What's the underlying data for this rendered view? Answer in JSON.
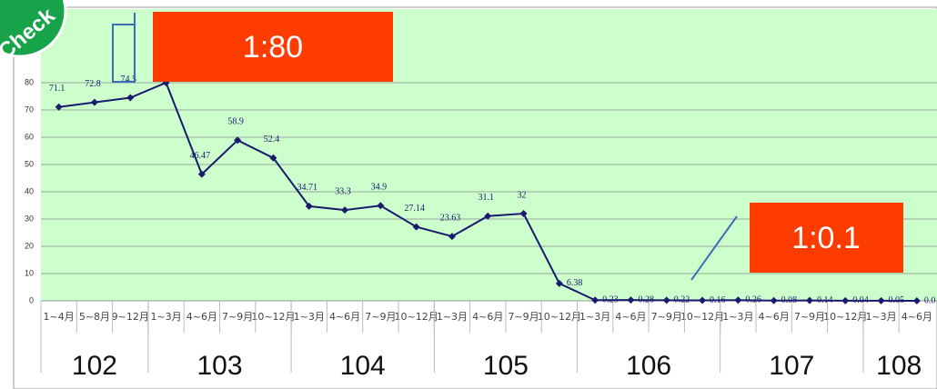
{
  "chart_data": {
    "type": "line",
    "groups": [
      {
        "label": "102",
        "categories": [
          "1~4月",
          "5~8月",
          "9~12月"
        ]
      },
      {
        "label": "103",
        "categories": [
          "1~3月",
          "4~6月",
          "7~9月",
          "10~12月"
        ]
      },
      {
        "label": "104",
        "categories": [
          "1~3月",
          "4~6月",
          "7~9月",
          "10~12月"
        ]
      },
      {
        "label": "105",
        "categories": [
          "1~3月",
          "4~6月",
          "7~9月",
          "10~12月"
        ]
      },
      {
        "label": "106",
        "categories": [
          "1~3月",
          "4~6月",
          "7~9月",
          "10~12月"
        ]
      },
      {
        "label": "107",
        "categories": [
          "1~3月",
          "4~6月",
          "7~9月",
          "10~12月"
        ]
      },
      {
        "label": "108",
        "categories": [
          "1~3月",
          "4~6月"
        ]
      }
    ],
    "series": [
      {
        "color": "#1a1a6e",
        "values": [
          71.1,
          72.8,
          74.5,
          80,
          46.47,
          58.9,
          52.4,
          34.71,
          33.3,
          34.9,
          27.14,
          23.63,
          31.1,
          32,
          6.38,
          0.23,
          0.28,
          0.22,
          0.16,
          0.26,
          0.08,
          0.14,
          0.04,
          0.05,
          0
        ],
        "value_labels": [
          "71.1",
          "72.8",
          "74.5",
          "80",
          "46.47",
          "58.9",
          "52.4",
          "34.71",
          "33.3",
          "34.9",
          "27.14",
          "23.63",
          "31.1",
          "32",
          "6.38",
          "0.23",
          "0.28",
          "0.22",
          "0.16",
          "0.26",
          "0.08",
          "0.14",
          "0.04",
          "0.05",
          "0.0"
        ]
      }
    ],
    "ylim": [
      0,
      107
    ],
    "yticks": [
      0,
      10,
      20,
      30,
      40,
      50,
      60,
      70,
      80
    ],
    "grid": true,
    "annotations": [
      "1:80",
      "1:0.1"
    ],
    "badge": "Check"
  }
}
